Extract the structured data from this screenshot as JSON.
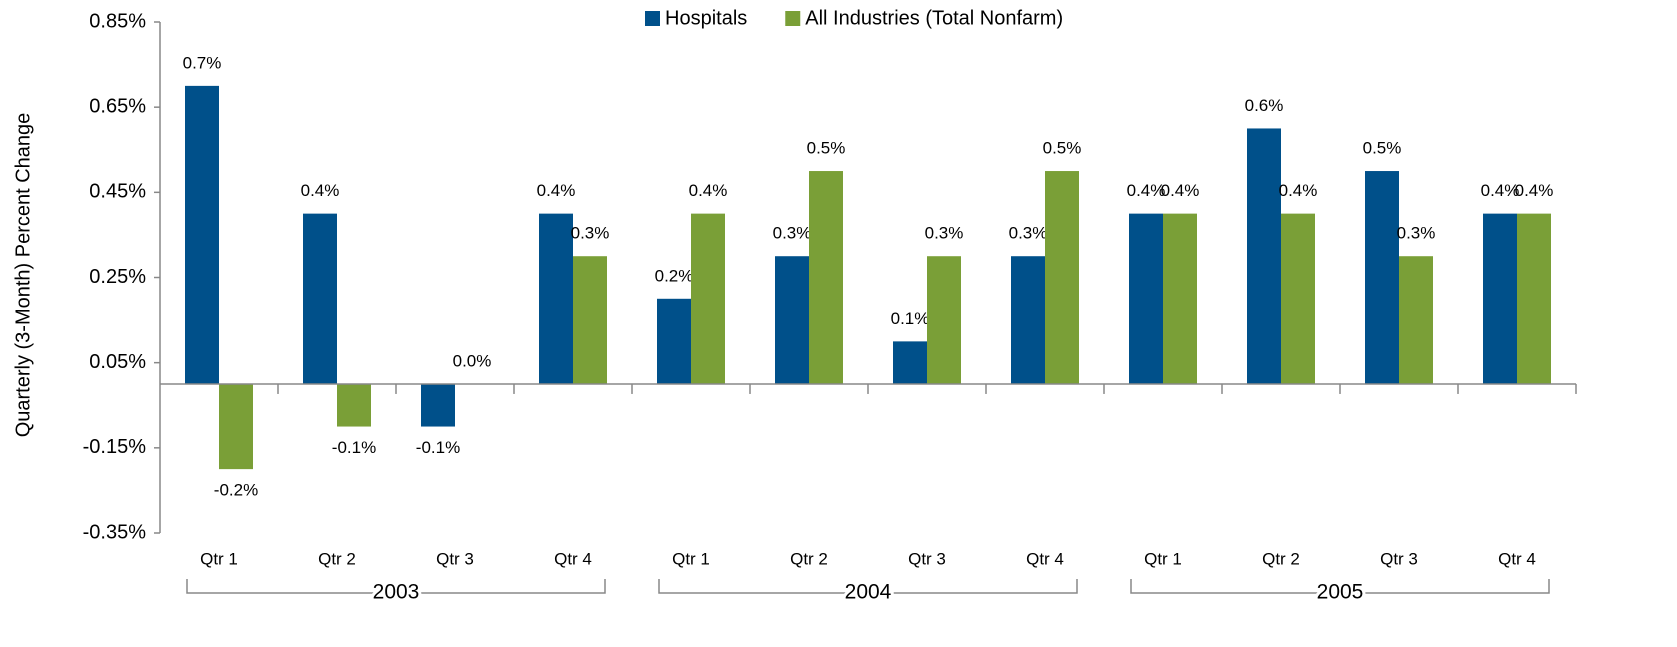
{
  "chart_data": {
    "type": "bar",
    "y_label": "Quarterly (3-Month) Percent Change",
    "categories": [
      "Qtr 1",
      "Qtr 2",
      "Qtr 3",
      "Qtr 4",
      "Qtr 1",
      "Qtr 2",
      "Qtr 3",
      "Qtr 4",
      "Qtr 1",
      "Qtr 2",
      "Qtr 3",
      "Qtr 4"
    ],
    "groups": [
      "2003",
      "2004",
      "2005"
    ],
    "series": [
      {
        "name": "Hospitals",
        "color": "#00508a",
        "values": [
          0.7,
          0.4,
          -0.1,
          0.4,
          0.2,
          0.3,
          0.1,
          0.3,
          0.4,
          0.6,
          0.5,
          0.4
        ],
        "value_labels": [
          "0.7%",
          "0.4%",
          "-0.1%",
          "0.4%",
          "0.2%",
          "0.3%",
          "0.1%",
          "0.3%",
          "0.4%",
          "0.6%",
          "0.5%",
          "0.4%"
        ]
      },
      {
        "name": "All Industries (Total Nonfarm)",
        "color": "#7a9f37",
        "values": [
          -0.2,
          -0.1,
          0.0,
          0.3,
          0.4,
          0.5,
          0.3,
          0.5,
          0.4,
          0.4,
          0.3,
          0.4
        ],
        "value_labels": [
          "-0.2%",
          "-0.1%",
          "0.0%",
          "0.3%",
          "0.4%",
          "0.5%",
          "0.3%",
          "0.5%",
          "0.4%",
          "0.4%",
          "0.3%",
          "0.4%"
        ]
      }
    ],
    "ylim": [
      -0.35,
      0.85
    ],
    "yticks": [
      {
        "value": -0.35,
        "label": "-0.35%"
      },
      {
        "value": -0.15,
        "label": "-0.15%"
      },
      {
        "value": 0.05,
        "label": "0.05%"
      },
      {
        "value": 0.25,
        "label": "0.25%"
      },
      {
        "value": 0.45,
        "label": "0.45%"
      },
      {
        "value": 0.65,
        "label": "0.65%"
      },
      {
        "value": 0.85,
        "label": "0.85%"
      }
    ],
    "legend": "top"
  }
}
